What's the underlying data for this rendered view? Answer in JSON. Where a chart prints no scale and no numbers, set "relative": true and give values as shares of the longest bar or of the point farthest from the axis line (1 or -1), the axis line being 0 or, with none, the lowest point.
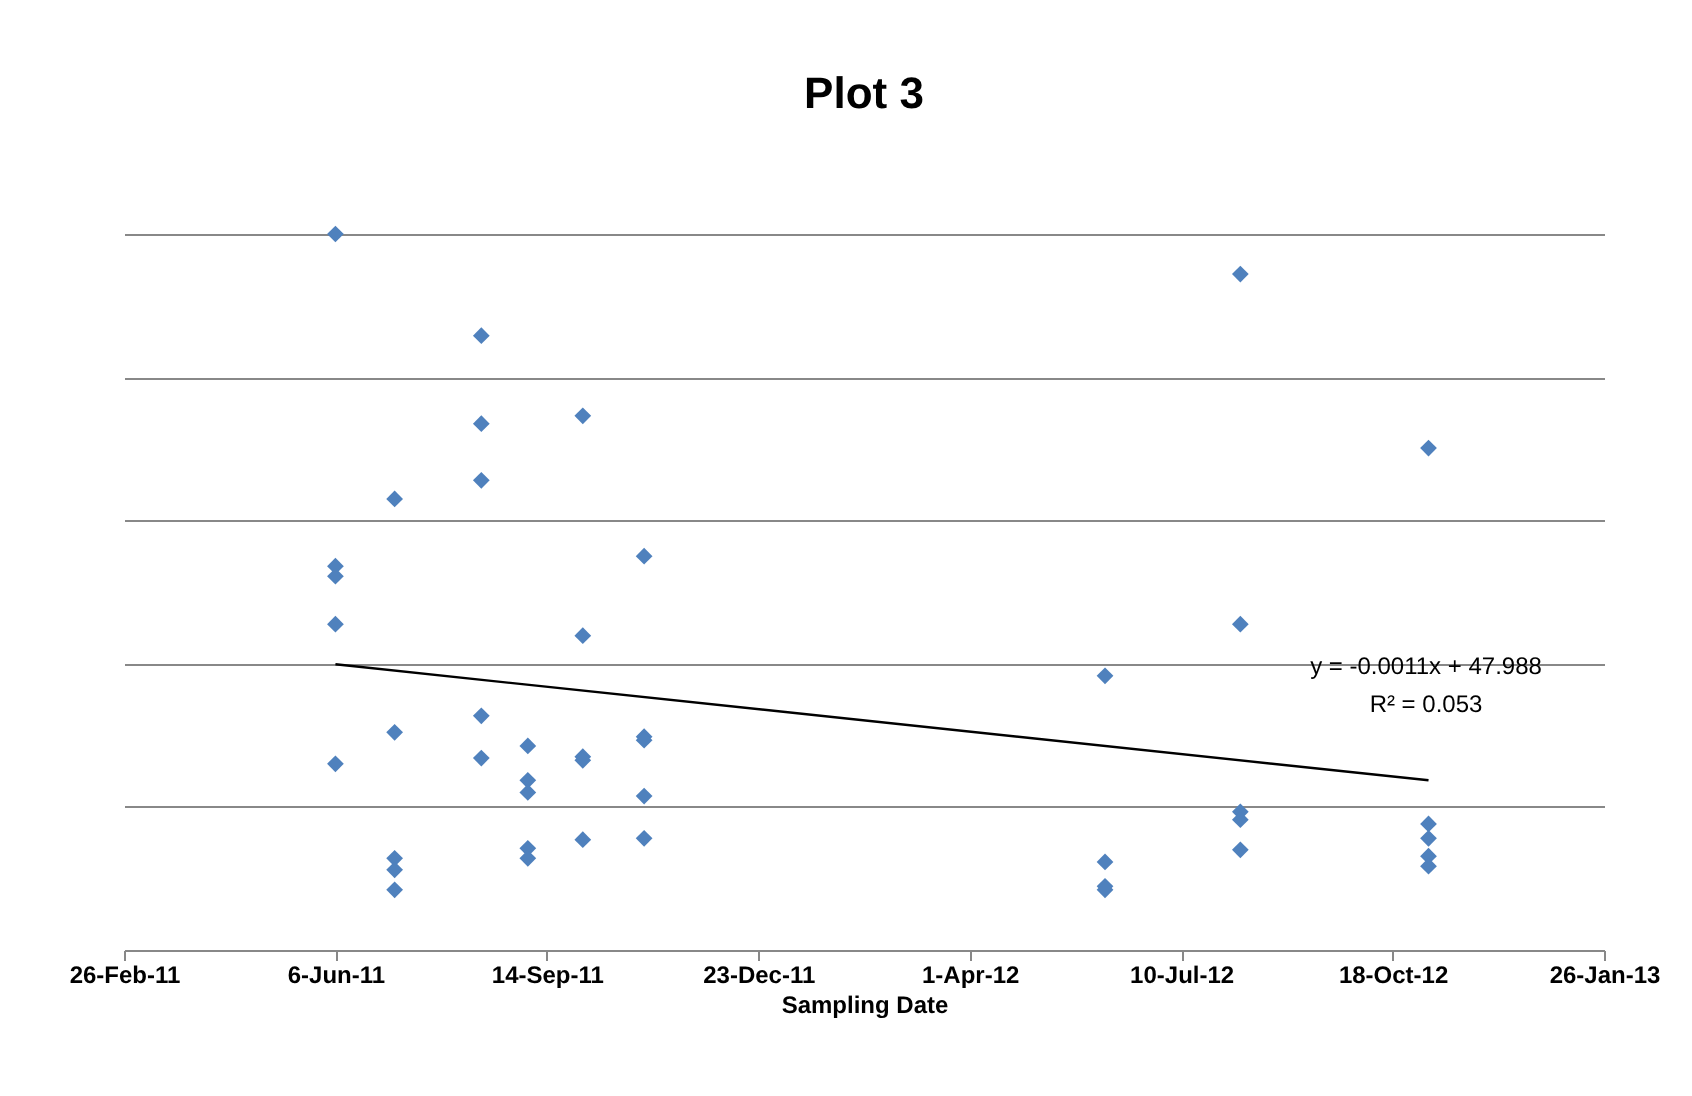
{
  "chart_data": {
    "type": "scatter",
    "title": "Plot 3",
    "xlabel": "Sampling Date",
    "relative": true,
    "grid": "y",
    "annotations": [
      "y = -0.0011x + 47.988",
      "R² = 0.053"
    ],
    "xlim": [
      "2011-02-26",
      "2013-01-26"
    ],
    "xticks": [
      {
        "value": "2011-02-26",
        "label": "26-Feb-11"
      },
      {
        "value": "2011-06-06",
        "label": "6-Jun-11"
      },
      {
        "value": "2011-09-14",
        "label": "14-Sep-11"
      },
      {
        "value": "2011-12-23",
        "label": "23-Dec-11"
      },
      {
        "value": "2012-04-01",
        "label": "1-Apr-12"
      },
      {
        "value": "2012-07-10",
        "label": "10-Jul-12"
      },
      {
        "value": "2012-10-18",
        "label": "18-Oct-12"
      },
      {
        "value": "2013-01-26",
        "label": "26-Jan-13"
      }
    ],
    "series": [
      {
        "color": "#4f81bd",
        "marker": "diamond",
        "x": [
          "2011-06-06",
          "2011-06-06",
          "2011-06-06",
          "2011-06-06",
          "2011-06-06",
          "2011-07-04",
          "2011-07-04",
          "2011-07-04",
          "2011-07-04",
          "2011-07-04",
          "2011-08-14",
          "2011-08-14",
          "2011-08-14",
          "2011-08-14",
          "2011-08-14",
          "2011-09-05",
          "2011-09-05",
          "2011-09-05",
          "2011-09-05",
          "2011-09-05",
          "2011-10-01",
          "2011-10-01",
          "2011-10-01",
          "2011-10-01",
          "2011-10-01",
          "2011-10-30",
          "2011-10-30",
          "2011-10-30",
          "2011-10-30",
          "2011-10-30",
          "2012-06-04",
          "2012-06-04",
          "2012-06-04",
          "2012-06-04",
          "2012-08-07",
          "2012-08-07",
          "2012-08-07",
          "2012-08-07",
          "2012-08-07",
          "2012-11-04",
          "2012-11-04",
          "2012-11-04",
          "2012-11-04",
          "2012-11-04"
        ],
        "values": [
          1.0,
          0.536,
          0.522,
          0.455,
          0.26,
          0.63,
          0.304,
          0.128,
          0.112,
          0.084,
          0.858,
          0.735,
          0.656,
          0.327,
          0.268,
          0.285,
          0.237,
          0.22,
          0.142,
          0.128,
          0.746,
          0.439,
          0.27,
          0.265,
          0.154,
          0.55,
          0.298,
          0.293,
          0.215,
          0.156,
          0.383,
          0.123,
          0.089,
          0.084,
          0.944,
          0.455,
          0.193,
          0.182,
          0.14,
          0.701,
          0.176,
          0.156,
          0.131,
          0.117
        ]
      },
      {
        "type": "line",
        "color": "#000000",
        "x": [
          "2011-06-06",
          "2012-11-04"
        ],
        "values": [
          0.399,
          0.237
        ]
      }
    ]
  }
}
